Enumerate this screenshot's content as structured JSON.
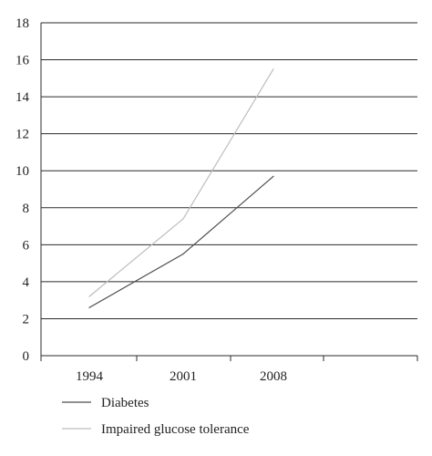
{
  "chart_data": {
    "type": "line",
    "categories": [
      "1994",
      "2001",
      "2008"
    ],
    "series": [
      {
        "name": "Diabetes",
        "values": [
          2.6,
          5.5,
          9.7
        ],
        "color": "#4d4d4d"
      },
      {
        "name": "Impaired glucose tolerance",
        "values": [
          3.2,
          7.4,
          15.5
        ],
        "color": "#bdbdbd"
      }
    ],
    "ylim": [
      0,
      18
    ],
    "yticks": [
      "0",
      "2",
      "4",
      "6",
      "8",
      "10",
      "12",
      "14",
      "16",
      "18"
    ],
    "grid": true,
    "legend_position": "bottom-left"
  }
}
